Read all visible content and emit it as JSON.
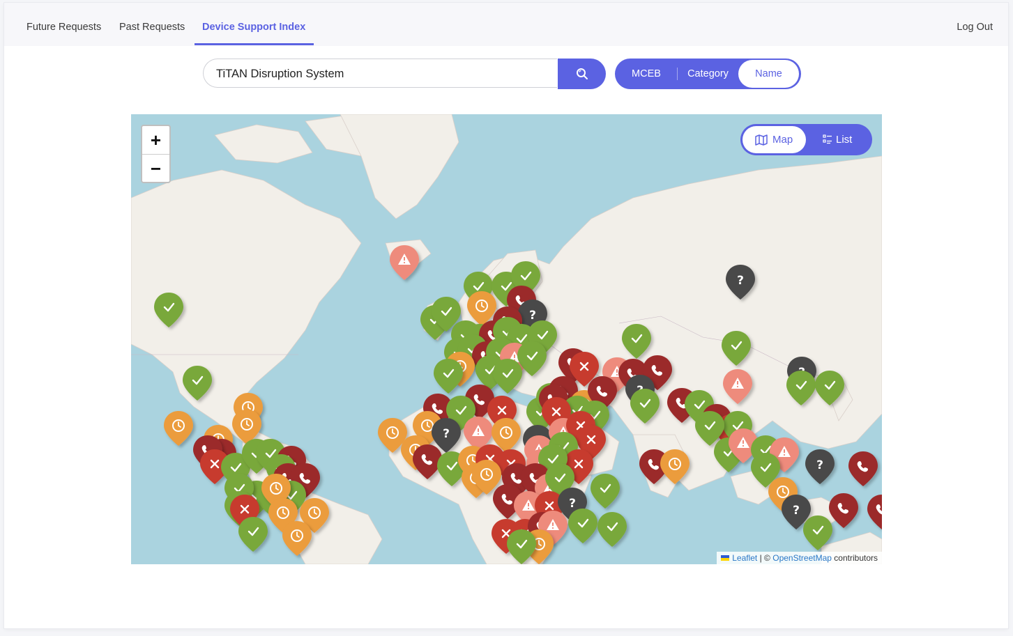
{
  "nav": {
    "tabs": [
      {
        "label": "Future Requests"
      },
      {
        "label": "Past Requests"
      },
      {
        "label": "Device Support Index"
      }
    ],
    "active_tab": "Device Support Index",
    "logout_label": "Log Out"
  },
  "search": {
    "value": "TiTAN Disruption System"
  },
  "filter": {
    "options": [
      "MCEB",
      "Category",
      "Name"
    ],
    "selected": "Name"
  },
  "map": {
    "zoom_in_label": "+",
    "zoom_out_label": "−",
    "view_toggle": {
      "map_label": "Map",
      "list_label": "List",
      "selected": "Map"
    },
    "attribution": {
      "leaflet": "Leaflet",
      "separator": "| ©",
      "osm": "OpenStreetMap",
      "suffix": "contributors"
    },
    "marker_colors": {
      "supported": "#79a83b",
      "pending": "#eb9c3c",
      "contact": "#9b2a2a",
      "unsupported": "#c73b2e",
      "warning": "#ee8b7b",
      "unknown": "#4a4a4a"
    }
  }
}
